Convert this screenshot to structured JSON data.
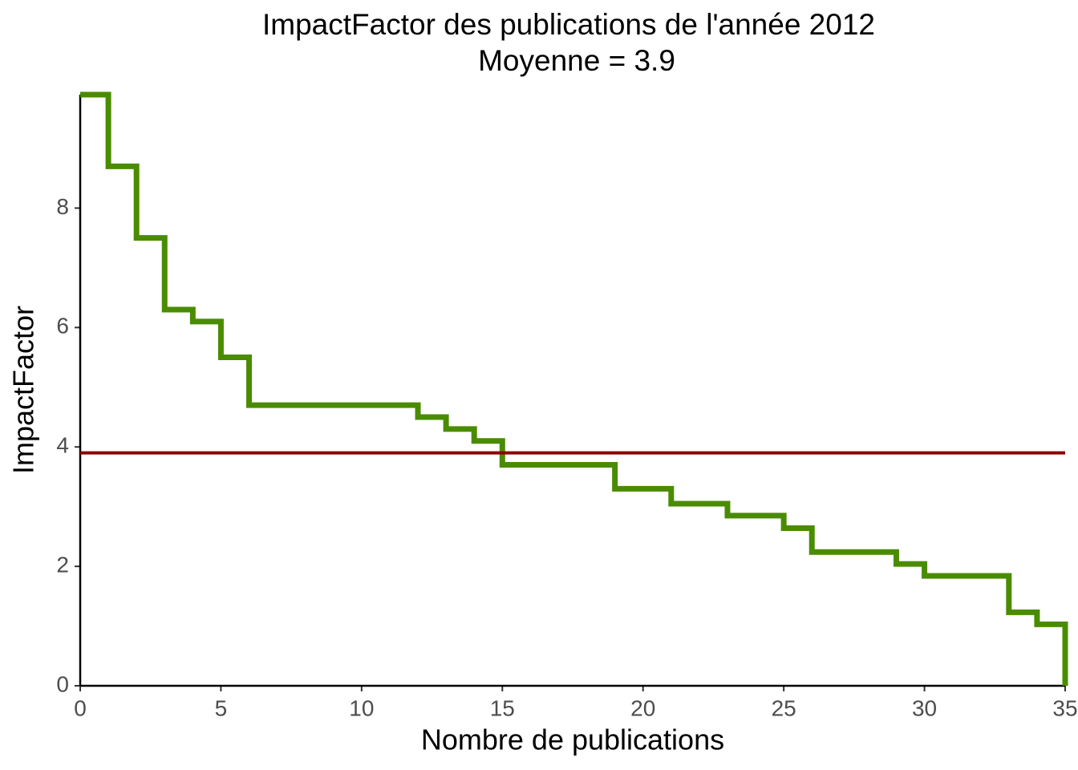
{
  "chart_data": {
    "type": "step",
    "title": "ImpactFactor des publications de l'année 2012",
    "subtitle": "Moyenne = 3.9",
    "x_label": "Nombre de publications",
    "y_label": "ImpactFactor",
    "x": [
      0,
      1,
      2,
      3,
      4,
      5,
      6,
      7,
      8,
      9,
      10,
      11,
      12,
      13,
      14,
      15,
      16,
      17,
      18,
      19,
      20,
      21,
      22,
      23,
      24,
      25,
      26,
      27,
      28,
      29,
      30,
      31,
      32,
      33,
      34,
      35
    ],
    "values": [
      9.9,
      8.7,
      7.5,
      6.3,
      6.1,
      5.5,
      4.7,
      4.7,
      4.7,
      4.7,
      4.7,
      4.7,
      4.5,
      4.3,
      4.1,
      3.7,
      3.7,
      3.7,
      3.7,
      3.3,
      3.3,
      3.05,
      3.05,
      2.85,
      2.85,
      2.64,
      2.24,
      2.24,
      2.24,
      2.04,
      1.84,
      1.84,
      1.84,
      1.23,
      1.03,
      0
    ],
    "color": "#4a8c00",
    "hline": 3.9,
    "hline_color": "#8b0000",
    "xlim": [
      0,
      35
    ],
    "xticks": [
      0,
      5,
      10,
      15,
      20,
      25,
      30,
      35
    ],
    "ylim": [
      0,
      9.9
    ],
    "yticks": [
      0,
      2,
      4,
      6,
      8
    ],
    "grid": false
  }
}
